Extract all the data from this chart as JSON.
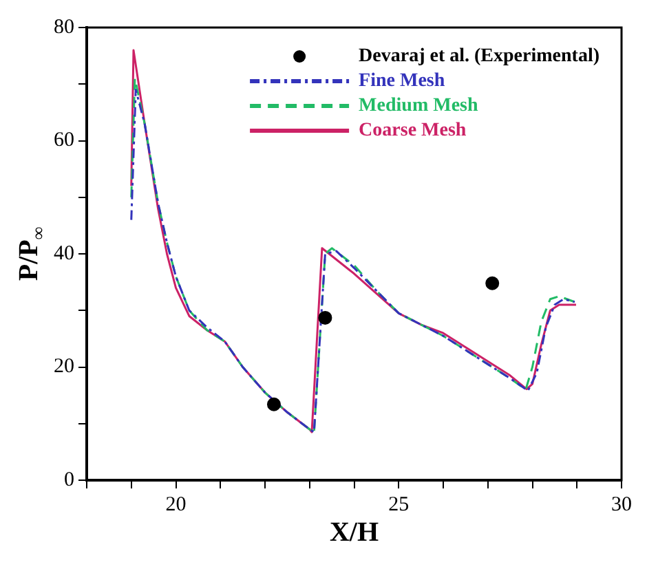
{
  "chart_data": {
    "type": "line",
    "xlabel": "X/H",
    "ylabel": "P/P$_{∞}$",
    "xlim": [
      18,
      30
    ],
    "ylim": [
      0,
      80
    ],
    "xticks": [
      {
        "value": 18,
        "label": null
      },
      {
        "value": 19,
        "label": null
      },
      20,
      {
        "value": 21,
        "label": null
      },
      {
        "value": 22,
        "label": null
      },
      {
        "value": 23,
        "label": null
      },
      {
        "value": 24,
        "label": null
      },
      25,
      {
        "value": 26,
        "label": null
      },
      {
        "value": 27,
        "label": null
      },
      {
        "value": 28,
        "label": null
      },
      {
        "value": 29,
        "label": null
      },
      30
    ],
    "yticks": [
      0,
      {
        "value": 10,
        "label": null
      },
      20,
      {
        "value": 30,
        "label": null
      },
      40,
      {
        "value": 50,
        "label": null
      },
      60,
      {
        "value": 70,
        "label": null
      },
      80
    ],
    "grid": false,
    "legend": "top right",
    "series": [
      {
        "name": "Devaraj et al. (Experimental)",
        "type": "scatter",
        "color": "#000000",
        "marker": "circle",
        "x": [
          22.2,
          23.35,
          27.1
        ],
        "values": [
          13.4,
          28.7,
          34.8
        ]
      },
      {
        "name": "Fine Mesh",
        "color": "#3333bb",
        "marker": "none",
        "line_style": "dashdot",
        "x": [
          19.0,
          19.1,
          19.3,
          19.6,
          19.8,
          20.0,
          20.3,
          20.7,
          21.1,
          21.5,
          22.0,
          22.5,
          23.0,
          23.1,
          23.35,
          23.6,
          24.0,
          24.5,
          25.0,
          25.5,
          26.0,
          26.5,
          27.0,
          27.5,
          27.9,
          28.1,
          28.3,
          28.5,
          28.7,
          28.95
        ],
        "values": [
          46,
          69,
          63,
          49,
          42,
          36,
          30,
          27,
          24.5,
          20,
          15.5,
          12,
          9,
          8.5,
          40,
          40.5,
          37.5,
          33.5,
          29.5,
          27.5,
          25.5,
          23,
          20.5,
          18,
          15.8,
          19,
          27,
          31,
          32,
          31.5
        ]
      },
      {
        "name": "Medium Mesh",
        "color": "#22bb66",
        "marker": "none",
        "line_style": "dashed",
        "x": [
          19.0,
          19.08,
          19.3,
          19.6,
          19.8,
          20.0,
          20.3,
          20.7,
          21.1,
          21.5,
          22.0,
          22.5,
          23.0,
          23.1,
          23.35,
          23.5,
          24.0,
          24.5,
          25.0,
          25.5,
          26.0,
          26.5,
          27.0,
          27.5,
          27.85,
          28.0,
          28.2,
          28.4,
          28.6,
          28.95
        ],
        "values": [
          50,
          71,
          63,
          49,
          42,
          36,
          30,
          26.5,
          24.5,
          20,
          15.5,
          12,
          9,
          8.3,
          40,
          41,
          38,
          33.5,
          29.5,
          27.5,
          25.5,
          23,
          20.5,
          18,
          16,
          20,
          28,
          32,
          32.5,
          31.5
        ]
      },
      {
        "name": "Coarse Mesh",
        "color": "#cc2266",
        "marker": "none",
        "line_style": "solid",
        "x": [
          19.0,
          19.05,
          19.3,
          19.6,
          19.8,
          20.0,
          20.3,
          20.7,
          21.1,
          21.5,
          22.0,
          22.5,
          23.0,
          23.05,
          23.28,
          23.6,
          24.0,
          24.5,
          25.0,
          25.5,
          26.0,
          26.5,
          27.0,
          27.5,
          27.87,
          28.0,
          28.2,
          28.4,
          28.6,
          28.98
        ],
        "values": [
          52,
          76,
          63,
          48,
          40,
          34,
          29,
          26.5,
          24.5,
          20,
          15.5,
          12,
          9,
          8.5,
          41,
          39,
          36.5,
          33,
          29.5,
          27.5,
          26,
          23.5,
          21,
          18.5,
          16.1,
          17,
          24,
          30,
          31,
          31
        ]
      }
    ]
  }
}
